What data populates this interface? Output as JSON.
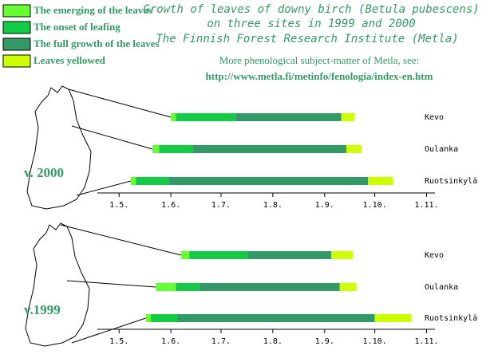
{
  "header": {
    "title_lines": [
      "Growth of leaves of downy birch (Betula pubescens)",
      "on three sites in 1999 and 2000",
      "The Finnish Forest Research Institute (Metla)"
    ],
    "more_text": "More phenological subject-matter of Metla, see:",
    "url": "http://www.metla.fi/metinfo/fenologia/index-en.htm"
  },
  "chart_data": [
    {
      "type": "gantt",
      "label": "v. 2000",
      "categories": [
        "Kevo",
        "Oulanka",
        "Ruotsinkylä"
      ],
      "series": [
        {
          "name": "The emerging of the leaves",
          "color": "#66ff33",
          "values": [
            [
              32,
              35
            ],
            [
              21,
              25
            ],
            [
              8,
              11
            ]
          ]
        },
        {
          "name": "The onset of leafing",
          "color": "#11cc44",
          "values": [
            [
              35,
              71
            ],
            [
              25,
              45
            ],
            [
              11,
              31
            ]
          ]
        },
        {
          "name": "The full growth of the leaves",
          "color": "#339966",
          "values": [
            [
              71,
              134
            ],
            [
              45,
              137
            ],
            [
              31,
              150
            ]
          ]
        },
        {
          "name": "Leaves yellowed",
          "color": "#ccff00",
          "values": [
            [
              134,
              142
            ],
            [
              137,
              146
            ],
            [
              150,
              165
            ]
          ]
        }
      ],
      "xlim": [
        -12,
        190
      ],
      "xticks": [
        {
          "value": 1,
          "label": "1.5."
        },
        {
          "value": 32,
          "label": "1.6."
        },
        {
          "value": 62,
          "label": "1.7."
        },
        {
          "value": 93,
          "label": "1.8."
        },
        {
          "value": 124,
          "label": "1.9."
        },
        {
          "value": 154,
          "label": "1.10."
        },
        {
          "value": 185,
          "label": "1.11."
        }
      ]
    },
    {
      "type": "gantt",
      "label": "v.1999",
      "categories": [
        "Kevo",
        "Oulanka",
        "Ruotsinkylä"
      ],
      "series": [
        {
          "color": "#66ff33",
          "values": [
            [
              38,
              43
            ],
            [
              23,
              35
            ],
            [
              17,
              20
            ]
          ]
        },
        {
          "color": "#11cc44",
          "values": [
            [
              43,
              78
            ],
            [
              35,
              49
            ],
            [
              20,
              36
            ]
          ]
        },
        {
          "color": "#339966",
          "values": [
            [
              78,
              128
            ],
            [
              49,
              133
            ],
            [
              36,
              154
            ]
          ]
        },
        {
          "color": "#ccff00",
          "values": [
            [
              128,
              141
            ],
            [
              133,
              143
            ],
            [
              154,
              176
            ]
          ]
        }
      ],
      "xlim": [
        -12,
        190
      ],
      "xticks": [
        {
          "value": 1,
          "label": "1.5."
        },
        {
          "value": 32,
          "label": "1.6."
        },
        {
          "value": 62,
          "label": "1.7."
        },
        {
          "value": 93,
          "label": "1.8."
        },
        {
          "value": 124,
          "label": "1.9."
        },
        {
          "value": 154,
          "label": "1.10."
        },
        {
          "value": 185,
          "label": "1.11."
        }
      ]
    }
  ]
}
